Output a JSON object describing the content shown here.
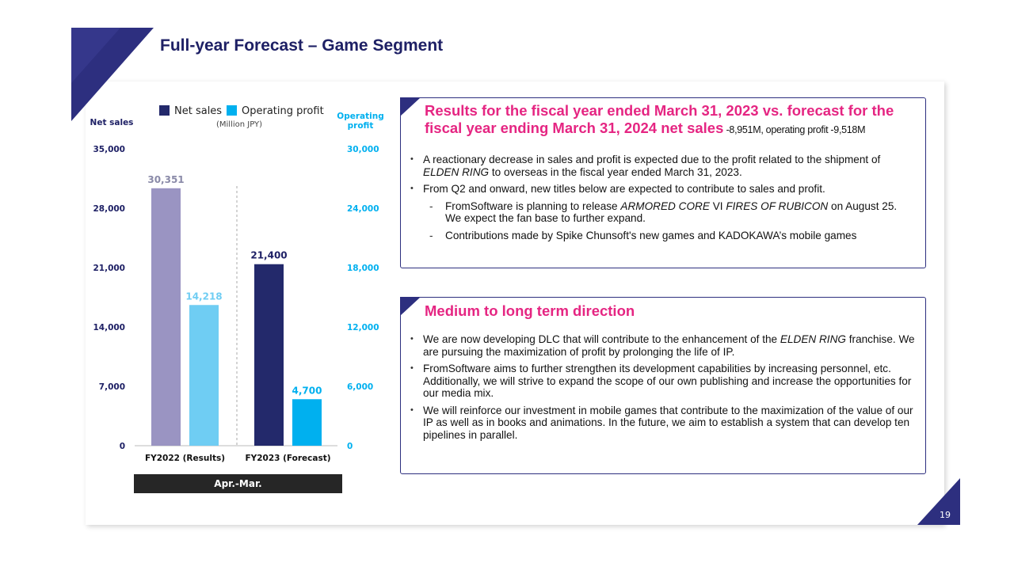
{
  "slide": {
    "title": "Full-year Forecast – Game Segment",
    "page_number": "19"
  },
  "colors": {
    "navy": "#2d2f7f",
    "pink": "#e52582",
    "net_sales_results": "#9a94c2",
    "op_profit_results": "#6fcdf3",
    "net_sales_forecast": "#23296b",
    "op_profit_forecast": "#00b0ef"
  },
  "chart_data": {
    "type": "bar",
    "title": "",
    "legend": [
      {
        "name": "Net sales",
        "color": "#23296b"
      },
      {
        "name": "Operating profit",
        "color": "#00b0ef"
      }
    ],
    "unit_note": "(Million JPY)",
    "left_axis": {
      "label": "Net sales",
      "ylim": [
        0,
        35000
      ],
      "ticks": [
        "35,000",
        "28,000",
        "21,000",
        "14,000",
        "7,000",
        "0"
      ]
    },
    "right_axis": {
      "label_line1": "Operating",
      "label_line2": "profit",
      "ylim": [
        0,
        30000
      ],
      "ticks": [
        "30,000",
        "24,000",
        "18,000",
        "12,000",
        "6,000",
        "0"
      ]
    },
    "categories": [
      "FY2022 (Results)",
      "FY2023 (Forecast)"
    ],
    "series": [
      {
        "name": "Net sales",
        "axis": "left",
        "values": [
          30351,
          21400
        ],
        "labels": [
          "30,351",
          "21,400"
        ]
      },
      {
        "name": "Operating profit",
        "axis": "right",
        "values": [
          14218,
          4700
        ],
        "labels": [
          "14,218",
          "4,700"
        ]
      }
    ],
    "period_label": "Apr.-Mar."
  },
  "box1": {
    "title_line1": "Results for the fiscal year ended March 31, 2023 vs. forecast for the",
    "title_line2": "fiscal year ending March 31, 2024 net sales",
    "title_sub": " -8,951M, operating profit -9,518M",
    "b1_a": "A reactionary decrease in sales and profit is expected due to the profit related to the shipment of ",
    "b1_i": "ELDEN RING",
    "b1_b": " to overseas in the fiscal year ended March 31, 2023.",
    "b2": "From Q2 and onward, new titles below are expected to contribute to sales and profit.",
    "d1_a": "FromSoftware is planning to release ",
    "d1_i1": "ARMORED CORE",
    "d1_b": " VI ",
    "d1_i2": "FIRES OF RUBICON",
    "d1_c": " on August 25. We expect the fan base to further expand.",
    "d2": "Contributions made by Spike Chunsoft's new games and KADOKAWA’s mobile games"
  },
  "box2": {
    "title": "Medium to long term direction",
    "b1_a": "We are now developing DLC that will contribute to the enhancement of the ",
    "b1_i": "ELDEN RING",
    "b1_b": " franchise. We are pursuing the maximization of profit by prolonging the life of IP.",
    "b2": "FromSoftware aims to further strengthen its development capabilities by increasing personnel, etc.  Additionally, we will strive to expand the scope of our own publishing and increase the opportunities for our media mix.",
    "b3": "We will reinforce our investment in mobile games that contribute to the maximization of the value of our IP as well as in books and animations. In the future, we aim to establish a system that can develop ten pipelines in parallel."
  }
}
